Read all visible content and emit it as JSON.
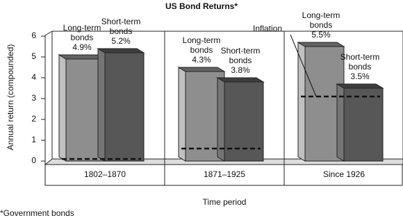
{
  "chart_data": {
    "type": "bar3d",
    "title": "US Bond Returns*",
    "x_label": "Time period",
    "y_label": "Annual return (compounded)",
    "footnote": "*Government bonds",
    "categories": [
      "1802–1870",
      "1871–1925",
      "Since 1926"
    ],
    "series": [
      {
        "name": "Long-term bonds",
        "color": "#8e8e8e",
        "values": [
          4.9,
          4.3,
          5.5
        ],
        "value_labels": [
          "4.9%",
          "4.3%",
          "5.5%"
        ]
      },
      {
        "name": "Short-term bonds",
        "color": "#575757",
        "values": [
          5.2,
          3.8,
          3.5
        ],
        "value_labels": [
          "5.2%",
          "3.8%",
          "3.5%"
        ]
      }
    ],
    "inflation": {
      "name": "Inflation",
      "values": [
        0.1,
        0.6,
        3.1
      ]
    },
    "ylim": [
      0,
      6
    ],
    "yticks": [
      0,
      1,
      2,
      3,
      4,
      5,
      6
    ]
  }
}
